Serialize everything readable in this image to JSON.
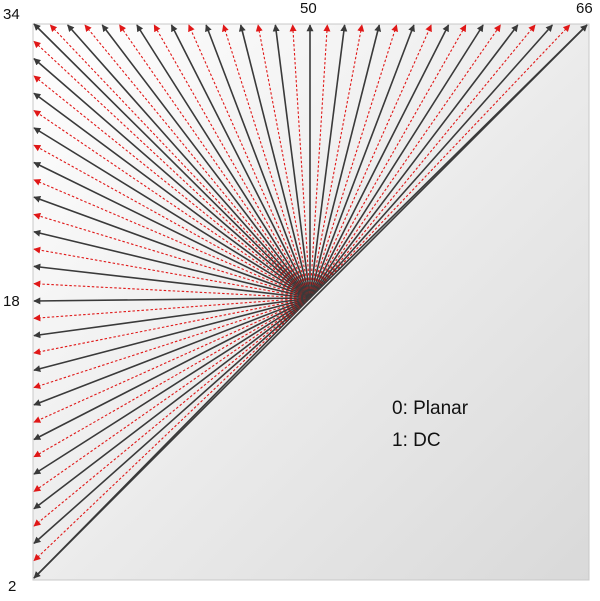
{
  "diagram": {
    "mode_labels": {
      "bottom_left": "2",
      "left_middle": "18",
      "top_left": "34",
      "top_middle": "50",
      "top_right": "66"
    },
    "legend": [
      {
        "text": "0: Planar"
      },
      {
        "text": "1: DC"
      }
    ],
    "modes": {
      "first": 2,
      "last": 66,
      "horizontal_mode": 18,
      "vertical_mode": 50,
      "diagonal_mode": 34,
      "original_modes_color_role": "solid",
      "added_modes_color_role": "dashed"
    },
    "colors": {
      "original_mode_arrow": "#3a3a3a",
      "added_mode_arrow": "#e01818",
      "background_gradient_light": "#ffffff",
      "background_gradient_dark": "#d9d9d9",
      "border": "#c8c8c8"
    }
  }
}
